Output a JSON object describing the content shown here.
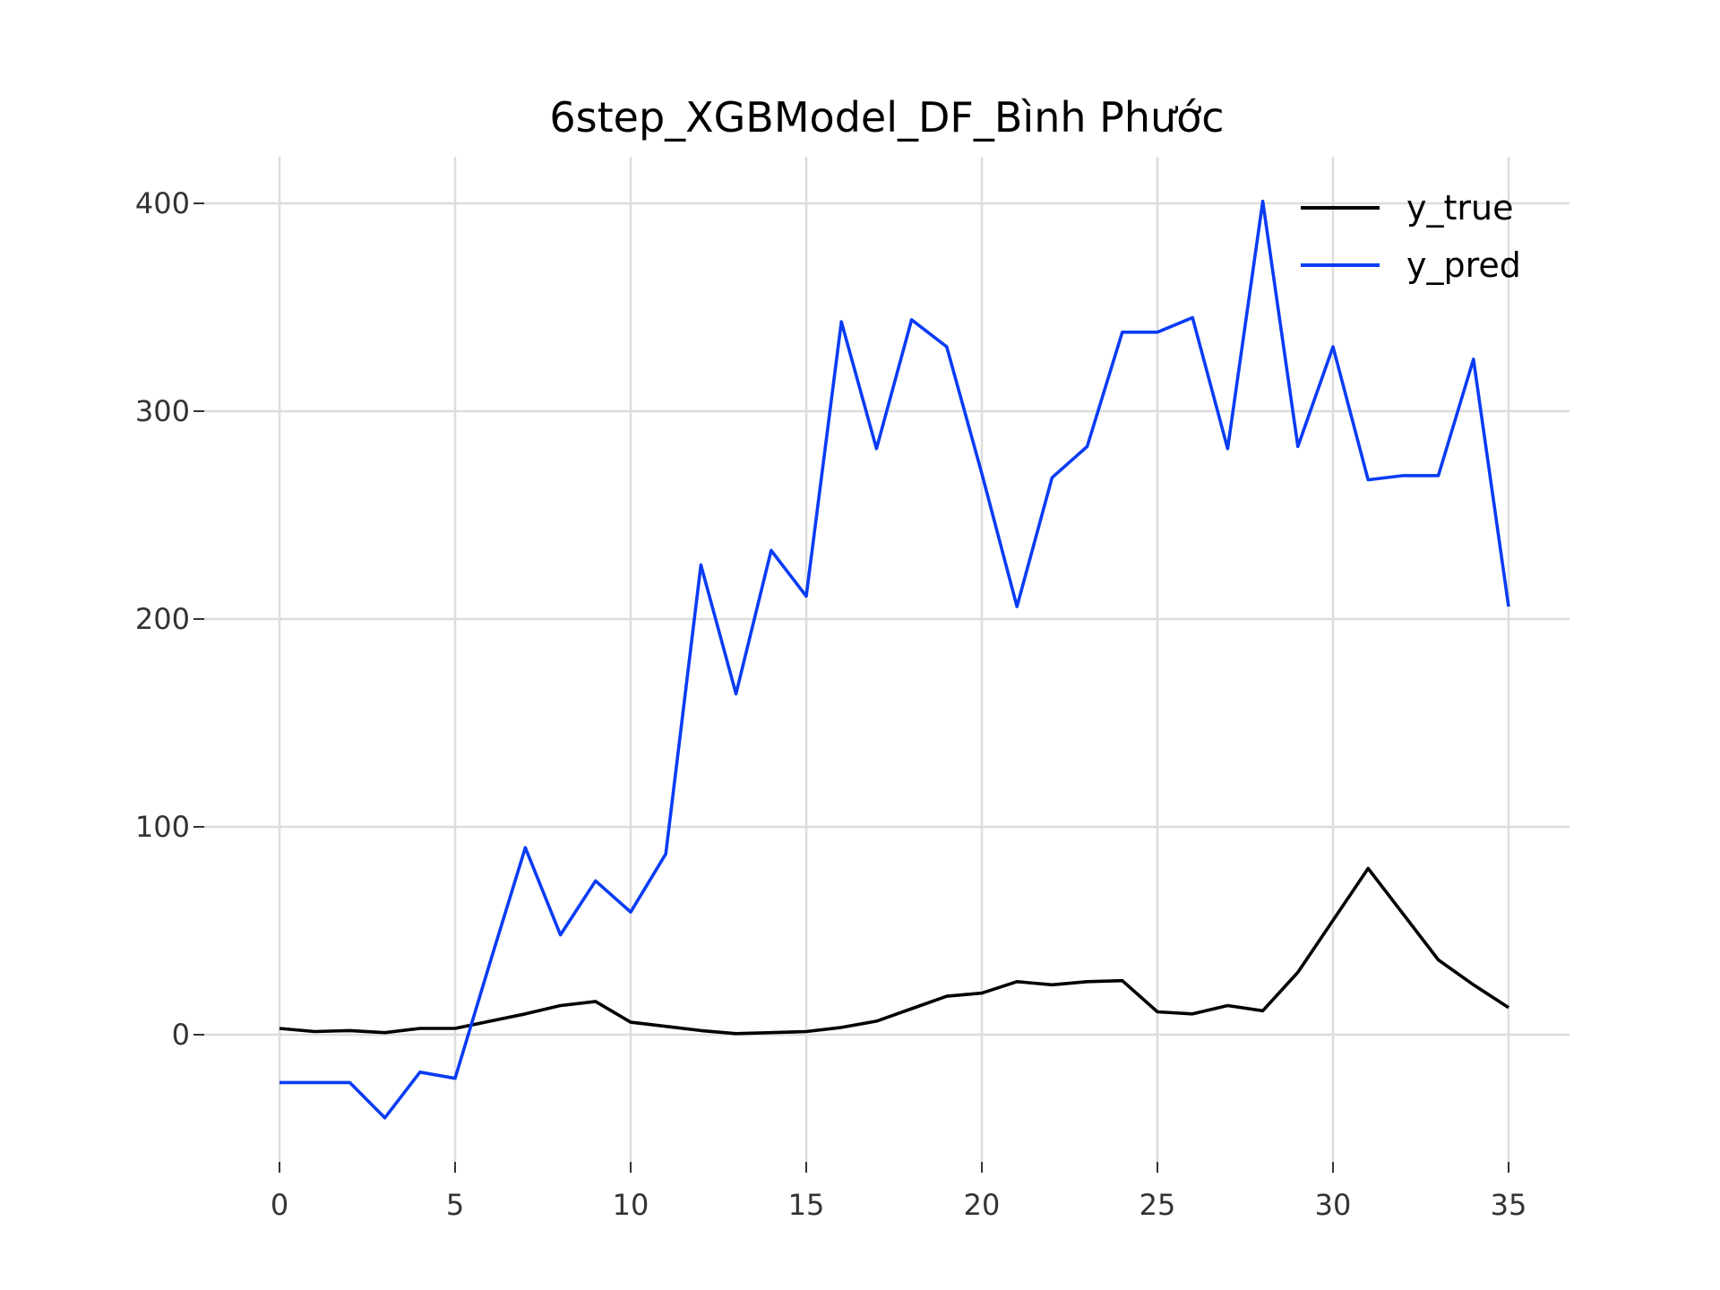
{
  "chart_data": {
    "type": "line",
    "title": "6step_XGBModel_DF_Bình Phước",
    "xlabel": "",
    "ylabel": "",
    "x": [
      0,
      1,
      2,
      3,
      4,
      5,
      6,
      7,
      8,
      9,
      10,
      11,
      12,
      13,
      14,
      15,
      16,
      17,
      18,
      19,
      20,
      21,
      22,
      23,
      24,
      25,
      26,
      27,
      28,
      29,
      30,
      31,
      32,
      33,
      34,
      35
    ],
    "xlim": [
      0,
      35
    ],
    "ylim": [
      -62,
      422
    ],
    "xticks": [
      0,
      5,
      10,
      15,
      20,
      25,
      30,
      35
    ],
    "yticks": [
      0,
      100,
      200,
      300,
      400
    ],
    "grid": true,
    "legend_position": "top-right",
    "series": [
      {
        "name": "y_true",
        "color": "#000000",
        "values": [
          3,
          1.5,
          2,
          1,
          3,
          3,
          6.5,
          10,
          14,
          16,
          6,
          4,
          2,
          0.5,
          1,
          1.5,
          3.5,
          6.5,
          12.5,
          18.5,
          20,
          25.5,
          24,
          25.5,
          26,
          11,
          10,
          14,
          11.5,
          30,
          55,
          80,
          58,
          36,
          24,
          13
        ]
      },
      {
        "name": "y_pred",
        "color": "#0a3cf5",
        "values": [
          -23,
          -23,
          -23,
          -40,
          -18,
          -21,
          35,
          90,
          48,
          74,
          59,
          87,
          226,
          164,
          233,
          211,
          343,
          282,
          344,
          331,
          270,
          206,
          268,
          283,
          338,
          338,
          345,
          282,
          401,
          283,
          331,
          267,
          269,
          269,
          325,
          206
        ]
      }
    ]
  }
}
